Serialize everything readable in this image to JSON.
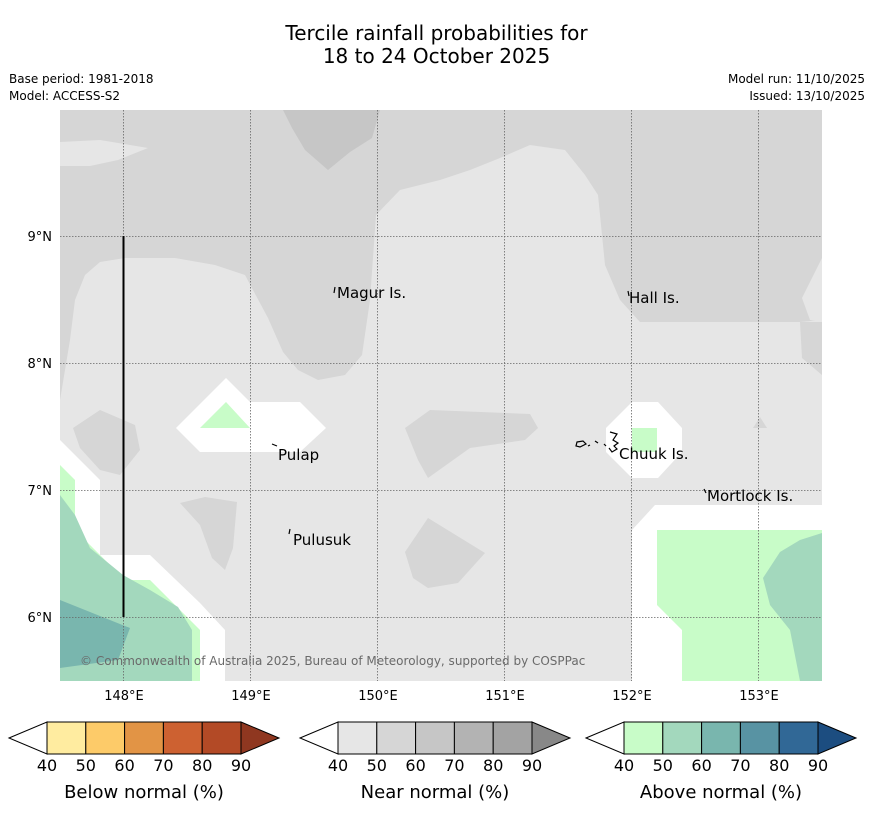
{
  "title": {
    "line1": "Tercile rainfall probabilities for",
    "line2": "18 to 24 October 2025"
  },
  "meta": {
    "base_period": "Base period: 1981-2018",
    "model": "Model: ACCESS-S2",
    "model_run": "Model run: 11/10/2025",
    "issued": "Issued: 13/10/2025"
  },
  "map": {
    "lat_labels": [
      "9°N",
      "8°N",
      "7°N",
      "6°N"
    ],
    "lon_labels": [
      "148°E",
      "149°E",
      "150°E",
      "151°E",
      "152°E",
      "153°E"
    ],
    "places": [
      "Magur Is.",
      "Hall Is.",
      "Pulap",
      "Chuuk Is.",
      "Mortlock Is.",
      "Pulusuk"
    ],
    "copyright": "© Commonwealth of Australia 2025, Bureau of Meteorology, supported by COSPPac"
  },
  "legend": {
    "ticks": [
      "40",
      "50",
      "60",
      "70",
      "80",
      "90"
    ],
    "below": {
      "title": "Below normal (%)",
      "colors": [
        "#ffeca0",
        "#fdcb69",
        "#e29445",
        "#cd6131",
        "#b34a26",
        "#8f3720"
      ]
    },
    "near": {
      "title": "Near normal (%)",
      "colors": [
        "#e6e6e6",
        "#d6d6d6",
        "#c6c6c6",
        "#b3b3b3",
        "#a3a3a3",
        "#888888"
      ]
    },
    "above": {
      "title": "Above normal (%)",
      "colors": [
        "#c8fcc8",
        "#a3d8bd",
        "#79b6ae",
        "#5893a3",
        "#316896",
        "#1c4d80"
      ]
    }
  }
}
